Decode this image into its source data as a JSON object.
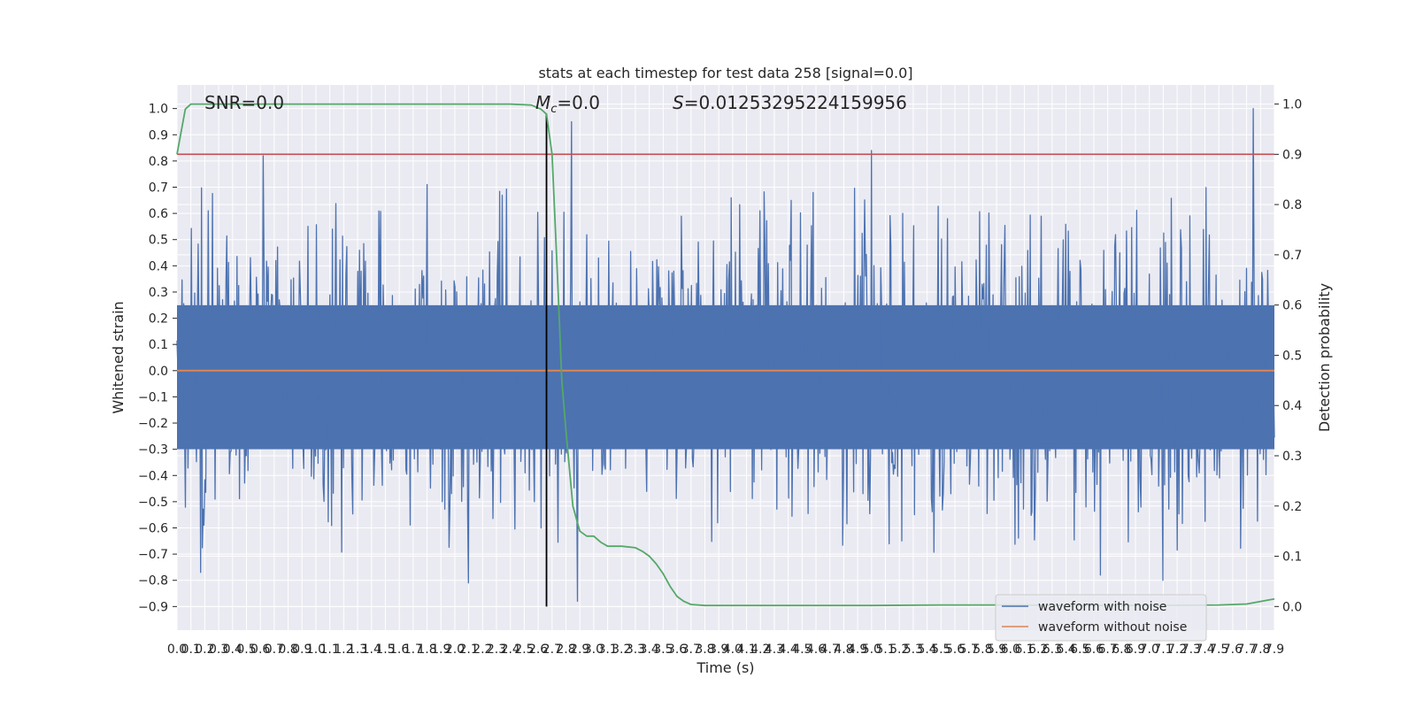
{
  "chart_data": {
    "type": "line",
    "title": "stats at each timestep for test data 258 [signal=0.0]",
    "xlabel": "Time (s)",
    "ylabel": "Whitened strain",
    "y2label": "Detection probability",
    "xlim": [
      0.0,
      7.9
    ],
    "ylim": [
      -0.99,
      1.09
    ],
    "y2lim": [
      -0.047,
      1.038
    ],
    "x_ticks": [
      "0.0",
      "0.1",
      "0.2",
      "0.3",
      "0.4",
      "0.5",
      "0.6",
      "0.7",
      "0.8",
      "0.9",
      "1.0",
      "1.1",
      "1.2",
      "1.3",
      "1.4",
      "1.5",
      "1.6",
      "1.7",
      "1.8",
      "1.9",
      "2.0",
      "2.1",
      "2.2",
      "2.3",
      "2.4",
      "2.5",
      "2.6",
      "2.7",
      "2.8",
      "2.9",
      "3.0",
      "3.1",
      "3.2",
      "3.3",
      "3.4",
      "3.5",
      "3.6",
      "3.7",
      "3.8",
      "3.9",
      "4.0",
      "4.1",
      "4.2",
      "4.3",
      "4.4",
      "4.5",
      "4.6",
      "4.7",
      "4.8",
      "4.9",
      "5.0",
      "5.1",
      "5.2",
      "5.3",
      "5.4",
      "5.5",
      "5.6",
      "5.7",
      "5.8",
      "5.9",
      "6.0",
      "6.1",
      "6.2",
      "6.3",
      "6.4",
      "6.5",
      "6.6",
      "6.7",
      "6.8",
      "6.9",
      "7.0",
      "7.1",
      "7.2",
      "7.3",
      "7.4",
      "7.5",
      "7.6",
      "7.7",
      "7.8",
      "7.9"
    ],
    "y_ticks": [
      "1.0",
      "0.9",
      "0.8",
      "0.7",
      "0.6",
      "0.5",
      "0.4",
      "0.3",
      "0.2",
      "0.1",
      "0.0",
      "−0.1",
      "−0.2",
      "−0.3",
      "−0.4",
      "−0.5",
      "−0.6",
      "−0.7",
      "−0.8",
      "−0.9"
    ],
    "y2_ticks": [
      "1.0",
      "0.9",
      "0.8",
      "0.7",
      "0.6",
      "0.5",
      "0.4",
      "0.3",
      "0.2",
      "0.1",
      "0.0"
    ],
    "annotations": {
      "snr": "SNR=0.0",
      "mc_symbol": "M",
      "mc_sub": "c",
      "mc_value": "=0.0",
      "s_symbol": "S",
      "s_value": "=0.01253295224159956"
    },
    "threshold_probability": 0.9,
    "marker_time": 2.66,
    "series": [
      {
        "name": "waveform with noise",
        "color": "#4c72b0",
        "axis": "left",
        "note": "dense noisy whitened strain, roughly uniform amplitude about ±0.35 with spikes up to 1.0 and down to -0.88",
        "spikes_max": [
          [
            0.62,
            0.82
          ],
          [
            1.8,
            0.71
          ],
          [
            2.84,
            0.95
          ],
          [
            5.0,
            0.84
          ],
          [
            7.75,
            1.0
          ]
        ],
        "spikes_min": [
          [
            0.17,
            -0.77
          ],
          [
            2.1,
            -0.81
          ],
          [
            2.88,
            -0.88
          ],
          [
            6.65,
            -0.78
          ],
          [
            7.1,
            -0.8
          ]
        ]
      },
      {
        "name": "waveform without noise",
        "color": "#dd8452",
        "axis": "left",
        "x": [
          0.0,
          7.9
        ],
        "y": [
          0.0,
          0.0
        ]
      },
      {
        "color": "#55a868",
        "axis": "right",
        "x": [
          0.0,
          0.06,
          0.1,
          0.2,
          1.0,
          2.0,
          2.4,
          2.55,
          2.62,
          2.66,
          2.7,
          2.74,
          2.77,
          2.8,
          2.85,
          2.9,
          2.95,
          3.0,
          3.05,
          3.1,
          3.2,
          3.3,
          3.35,
          3.4,
          3.45,
          3.5,
          3.55,
          3.6,
          3.65,
          3.7,
          3.8,
          4.0,
          5.0,
          5.5,
          6.0,
          6.5,
          7.0,
          7.5,
          7.7,
          7.8,
          7.9
        ],
        "y": [
          0.9,
          0.99,
          1.0,
          1.0,
          1.0,
          1.0,
          1.0,
          0.998,
          0.99,
          0.98,
          0.9,
          0.65,
          0.45,
          0.35,
          0.2,
          0.15,
          0.14,
          0.14,
          0.128,
          0.12,
          0.12,
          0.117,
          0.11,
          0.1,
          0.085,
          0.065,
          0.04,
          0.02,
          0.01,
          0.004,
          0.002,
          0.002,
          0.002,
          0.003,
          0.003,
          0.002,
          0.002,
          0.003,
          0.005,
          0.01,
          0.015
        ]
      }
    ],
    "legend": {
      "position": "lower-right",
      "entries": [
        {
          "label": "waveform with noise",
          "color": "#4c72b0"
        },
        {
          "label": "waveform without noise",
          "color": "#dd8452"
        }
      ]
    },
    "threshold_color": "#c44e52",
    "marker_color": "#000000",
    "grid": true,
    "background": "#eaeaf2"
  }
}
